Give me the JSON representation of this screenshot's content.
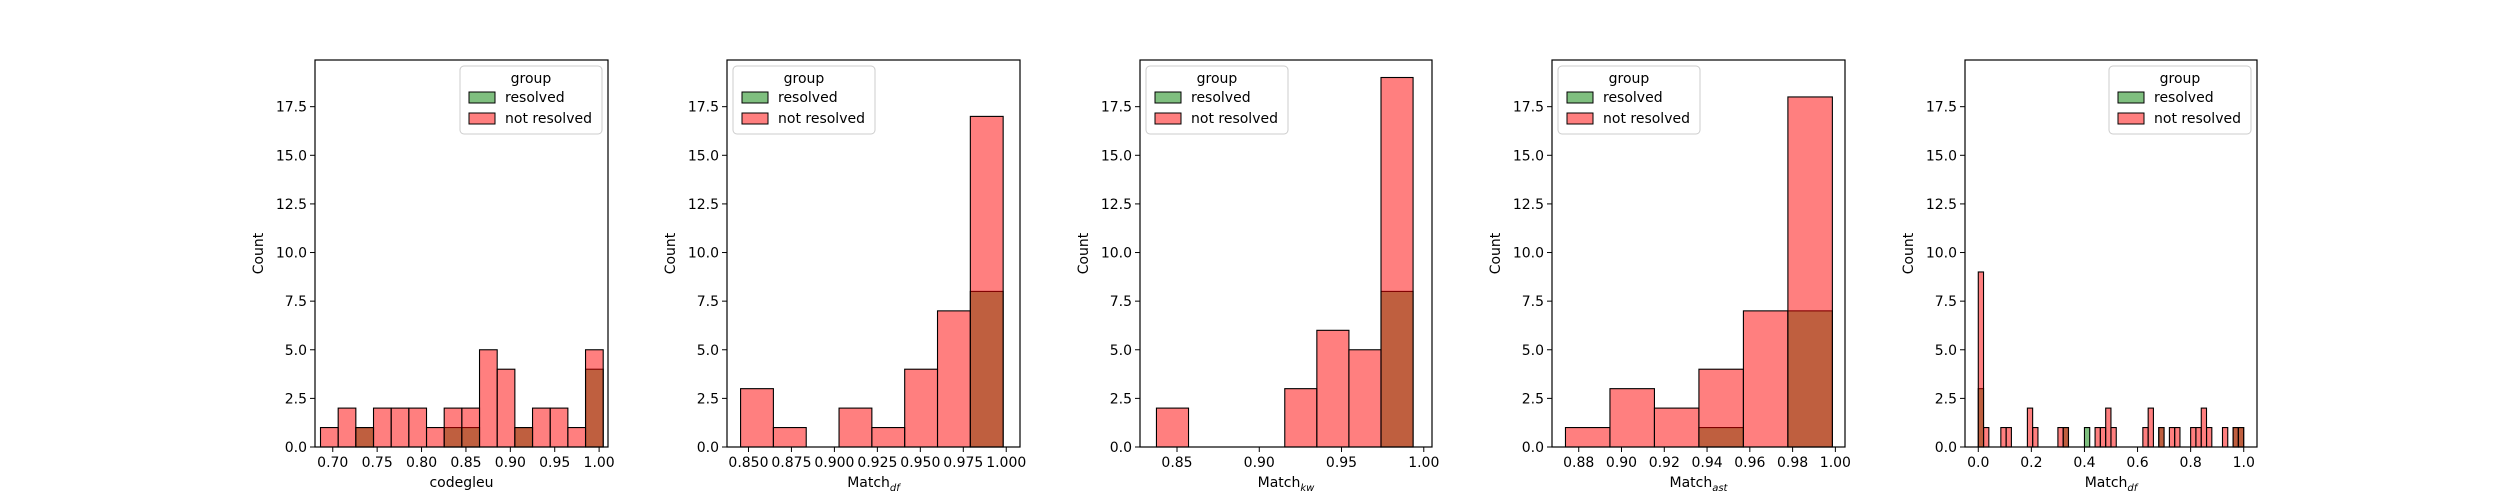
{
  "legend": {
    "title": "group",
    "resolved": "resolved",
    "not_resolved": "not resolved"
  },
  "colors": {
    "resolved": "#008000",
    "not_resolved": "#ff0000",
    "overlap": "#808000"
  },
  "chart_data": [
    {
      "type": "bar",
      "xlabel": "codegleu",
      "xlabel_sub": "",
      "ylabel": "Count",
      "xlim": [
        0.68,
        1.01
      ],
      "ylim": [
        0,
        19.9
      ],
      "xticks": [
        0.7,
        0.75,
        0.8,
        0.85,
        0.9,
        0.95,
        1.0
      ],
      "xtick_labels": [
        "0.70",
        "0.75",
        "0.80",
        "0.85",
        "0.90",
        "0.95",
        "1.00"
      ],
      "yticks": [
        0,
        2.5,
        5,
        7.5,
        10,
        12.5,
        15,
        17.5
      ],
      "ytick_labels": [
        "0.0",
        "2.5",
        "5.0",
        "7.5",
        "10.0",
        "12.5",
        "15.0",
        "17.5"
      ],
      "legend_position": "top-right",
      "bin_edges": [
        0.6862,
        0.7061,
        0.726,
        0.7459,
        0.7658,
        0.7857,
        0.8056,
        0.8255,
        0.8454,
        0.8653,
        0.8852,
        0.9051,
        0.925,
        0.9449,
        0.9648,
        0.9847,
        1.0046
      ],
      "series": [
        {
          "name": "resolved",
          "counts": [
            0,
            0,
            1,
            0,
            0,
            0,
            0,
            1,
            1,
            0,
            0,
            1,
            0,
            0,
            0,
            4
          ]
        },
        {
          "name": "not resolved",
          "counts": [
            1,
            2,
            1,
            2,
            2,
            2,
            1,
            2,
            2,
            5,
            4,
            1,
            2,
            2,
            1,
            5
          ]
        }
      ]
    },
    {
      "type": "bar",
      "xlabel": "Match",
      "xlabel_sub": "df",
      "ylabel": "Count",
      "xlim": [
        0.8375,
        1.008
      ],
      "ylim": [
        0,
        19.9
      ],
      "xticks": [
        0.85,
        0.875,
        0.9,
        0.925,
        0.95,
        0.975,
        1.0
      ],
      "xtick_labels": [
        "0.850",
        "0.875",
        "0.900",
        "0.925",
        "0.950",
        "0.975",
        "1.000"
      ],
      "yticks": [
        0,
        2.5,
        5,
        7.5,
        10,
        12.5,
        15,
        17.5
      ],
      "ytick_labels": [
        "0.0",
        "2.5",
        "5.0",
        "7.5",
        "10.0",
        "12.5",
        "15.0",
        "17.5"
      ],
      "legend_position": "top-left",
      "bin_edges": [
        0.8454,
        0.8645,
        0.8836,
        0.9027,
        0.9218,
        0.9409,
        0.96,
        0.9791,
        0.9982
      ],
      "series": [
        {
          "name": "resolved",
          "counts": [
            0,
            0,
            0,
            0,
            0,
            0,
            0,
            8
          ]
        },
        {
          "name": "not resolved",
          "counts": [
            3,
            1,
            0,
            2,
            1,
            4,
            7,
            17
          ]
        }
      ]
    },
    {
      "type": "bar",
      "xlabel": "Match",
      "xlabel_sub": "kw",
      "ylabel": "Count",
      "xlim": [
        0.8275,
        1.005
      ],
      "ylim": [
        0,
        19.9
      ],
      "xticks": [
        0.85,
        0.9,
        0.95,
        1.0
      ],
      "xtick_labels": [
        "0.85",
        "0.90",
        "0.95",
        "1.00"
      ],
      "yticks": [
        0,
        2.5,
        5,
        7.5,
        10,
        12.5,
        15,
        17.5
      ],
      "ytick_labels": [
        "0.0",
        "2.5",
        "5.0",
        "7.5",
        "10.0",
        "12.5",
        "15.0",
        "17.5"
      ],
      "legend_position": "top-left",
      "bin_edges": [
        0.8375,
        0.857,
        0.8765,
        0.896,
        0.9155,
        0.935,
        0.9545,
        0.974,
        0.9935
      ],
      "series": [
        {
          "name": "resolved",
          "counts": [
            0,
            0,
            0,
            0,
            0,
            0,
            0,
            8
          ]
        },
        {
          "name": "not resolved",
          "counts": [
            2,
            0,
            0,
            0,
            3,
            6,
            5,
            19
          ]
        }
      ]
    },
    {
      "type": "bar",
      "xlabel": "Match",
      "xlabel_sub": "ast",
      "ylabel": "Count",
      "xlim": [
        0.8675,
        1.0045
      ],
      "ylim": [
        0,
        19.9
      ],
      "xticks": [
        0.88,
        0.9,
        0.92,
        0.94,
        0.96,
        0.98,
        1.0
      ],
      "xtick_labels": [
        "0.88",
        "0.90",
        "0.92",
        "0.94",
        "0.96",
        "0.98",
        "1.00"
      ],
      "yticks": [
        0,
        2.5,
        5,
        7.5,
        10,
        12.5,
        15,
        17.5
      ],
      "ytick_labels": [
        "0.0",
        "2.5",
        "5.0",
        "7.5",
        "10.0",
        "12.5",
        "15.0",
        "17.5"
      ],
      "legend_position": "top-left",
      "bin_edges": [
        0.8738,
        0.8946,
        0.9154,
        0.9362,
        0.957,
        0.9778,
        0.9986
      ],
      "series": [
        {
          "name": "resolved",
          "counts": [
            0,
            0,
            0,
            1,
            0,
            7
          ]
        },
        {
          "name": "not resolved",
          "counts": [
            1,
            3,
            2,
            4,
            7,
            18
          ]
        }
      ]
    },
    {
      "type": "bar",
      "xlabel": "Match",
      "xlabel_sub": "df",
      "ylabel": "Count",
      "xlim": [
        -0.05,
        1.05
      ],
      "ylim": [
        0,
        19.9
      ],
      "xticks": [
        0.0,
        0.2,
        0.4,
        0.6,
        0.8,
        1.0
      ],
      "xtick_labels": [
        "0.0",
        "0.2",
        "0.4",
        "0.6",
        "0.8",
        "1.0"
      ],
      "yticks": [
        0,
        2.5,
        5,
        7.5,
        10,
        12.5,
        15,
        17.5
      ],
      "ytick_labels": [
        "0.0",
        "2.5",
        "5.0",
        "7.5",
        "10.0",
        "12.5",
        "15.0",
        "17.5"
      ],
      "legend_position": "top-right",
      "bin_width": 0.0198,
      "bars": [
        {
          "x": 0.0,
          "resolved": 3,
          "not_resolved": 9
        },
        {
          "x": 0.02,
          "resolved": 0,
          "not_resolved": 1
        },
        {
          "x": 0.085,
          "resolved": 0,
          "not_resolved": 1
        },
        {
          "x": 0.105,
          "resolved": 0,
          "not_resolved": 1
        },
        {
          "x": 0.185,
          "resolved": 0,
          "not_resolved": 2
        },
        {
          "x": 0.205,
          "resolved": 0,
          "not_resolved": 1
        },
        {
          "x": 0.3,
          "resolved": 0,
          "not_resolved": 1
        },
        {
          "x": 0.32,
          "resolved": 1,
          "not_resolved": 1
        },
        {
          "x": 0.4,
          "resolved": 1,
          "not_resolved": 0
        },
        {
          "x": 0.44,
          "resolved": 0,
          "not_resolved": 1
        },
        {
          "x": 0.46,
          "resolved": 0,
          "not_resolved": 1
        },
        {
          "x": 0.48,
          "resolved": 0,
          "not_resolved": 2
        },
        {
          "x": 0.5,
          "resolved": 0,
          "not_resolved": 1
        },
        {
          "x": 0.62,
          "resolved": 0,
          "not_resolved": 1
        },
        {
          "x": 0.64,
          "resolved": 0,
          "not_resolved": 2
        },
        {
          "x": 0.68,
          "resolved": 1,
          "not_resolved": 1
        },
        {
          "x": 0.72,
          "resolved": 0,
          "not_resolved": 1
        },
        {
          "x": 0.74,
          "resolved": 0,
          "not_resolved": 1
        },
        {
          "x": 0.8,
          "resolved": 0,
          "not_resolved": 1
        },
        {
          "x": 0.82,
          "resolved": 0,
          "not_resolved": 1
        },
        {
          "x": 0.84,
          "resolved": 0,
          "not_resolved": 2
        },
        {
          "x": 0.86,
          "resolved": 0,
          "not_resolved": 1
        },
        {
          "x": 0.92,
          "resolved": 0,
          "not_resolved": 1
        },
        {
          "x": 0.96,
          "resolved": 1,
          "not_resolved": 1
        },
        {
          "x": 0.98,
          "resolved": 1,
          "not_resolved": 1
        }
      ]
    }
  ]
}
